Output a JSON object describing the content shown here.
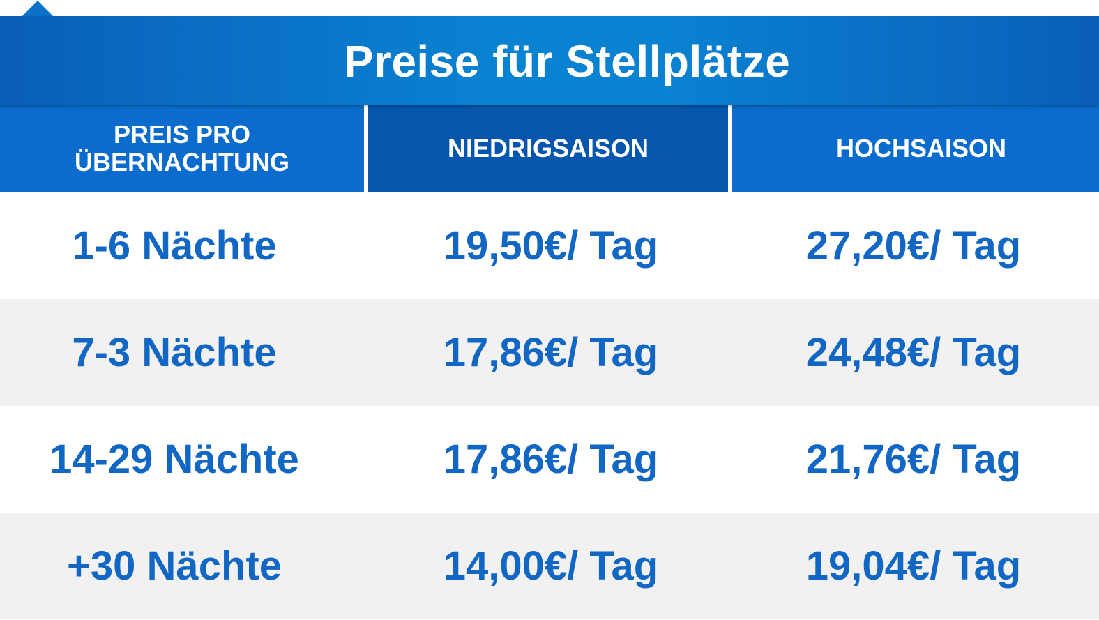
{
  "title": "Preise für Stellplätze",
  "colors": {
    "header_blue": "#0b6ccd",
    "header_dark_blue": "#0656ad",
    "text_blue": "#1167c3",
    "row_alt": "#f1f1f1"
  },
  "table": {
    "headers": [
      "PREIS PRO ÜBERNACHTUNG",
      "NIEDRIGSAISON",
      "HOCHSAISON"
    ],
    "rows": [
      {
        "duration": "1-6 Nächte",
        "low": "19,50€/ Tag",
        "high": "27,20€/ Tag"
      },
      {
        "duration": "7-3 Nächte",
        "low": "17,86€/ Tag",
        "high": "24,48€/ Tag"
      },
      {
        "duration": "14-29 Nächte",
        "low": "17,86€/ Tag",
        "high": "21,76€/ Tag"
      },
      {
        "duration": "+30 Nächte",
        "low": "14,00€/ Tag",
        "high": "19,04€/ Tag"
      }
    ]
  }
}
